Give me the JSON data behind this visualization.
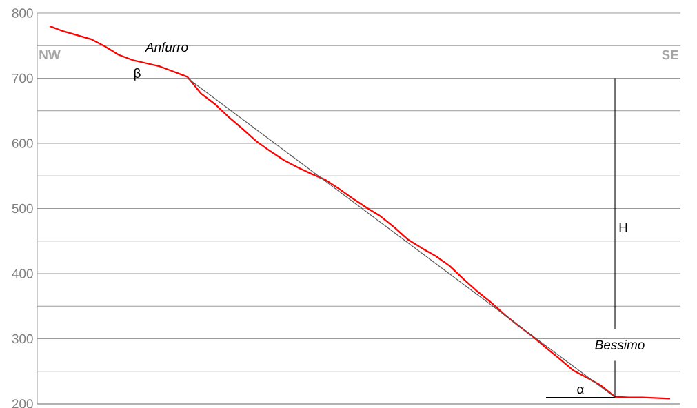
{
  "chart_data": {
    "type": "line",
    "categories": [
      null,
      null,
      null,
      null,
      null,
      null,
      null,
      null,
      null,
      null,
      null,
      null,
      null,
      null,
      null,
      null,
      null,
      null,
      null,
      null,
      null,
      null,
      null,
      null,
      null,
      null,
      null,
      null,
      null,
      null,
      null,
      null,
      null,
      null,
      null,
      null,
      null,
      null,
      null,
      null,
      null,
      null,
      null,
      null,
      null,
      null
    ],
    "series": [
      {
        "color": "#ff0000",
        "values": [
          780,
          772,
          766,
          760,
          749,
          736,
          728,
          723,
          718,
          710,
          702,
          676,
          660,
          640,
          622,
          603,
          588,
          574,
          563,
          553,
          544,
          530,
          515,
          501,
          488,
          471,
          452,
          439,
          427,
          412,
          392,
          373,
          356,
          337,
          320,
          304,
          286,
          269,
          251,
          240,
          228,
          211,
          210,
          210,
          209,
          208
        ]
      },
      {
        "color": "#595959",
        "values": [
          null,
          null,
          null,
          null,
          null,
          null,
          null,
          null,
          null,
          null,
          700,
          null,
          null,
          null,
          null,
          null,
          null,
          null,
          null,
          null,
          null,
          null,
          null,
          null,
          null,
          null,
          null,
          null,
          null,
          null,
          null,
          null,
          null,
          null,
          null,
          null,
          null,
          null,
          null,
          null,
          null,
          210,
          null,
          null,
          null,
          null
        ]
      },
      {
        "color": "#000000",
        "values": [
          null,
          null,
          null,
          null,
          null,
          null,
          null,
          null,
          null,
          null,
          null,
          null,
          null,
          null,
          null,
          null,
          null,
          null,
          null,
          null,
          null,
          null,
          null,
          null,
          null,
          null,
          null,
          null,
          null,
          null,
          null,
          null,
          null,
          null,
          null,
          null,
          210,
          210,
          210,
          210,
          210,
          210,
          null,
          null,
          null,
          null
        ]
      }
    ],
    "ylim": [
      200,
      800
    ],
    "yticks": [
      200,
      {
        "value": 250,
        "label": null
      },
      300,
      {
        "value": 350,
        "label": null
      },
      400,
      {
        "value": 450,
        "label": null
      },
      500,
      {
        "value": 550,
        "label": null
      },
      600,
      {
        "value": 650,
        "label": null
      },
      700,
      {
        "value": 750,
        "label": null
      },
      800
    ],
    "grid": "y",
    "tick_labels": "y",
    "annotations": [
      "NW",
      "SE",
      "Anfurro",
      "β",
      "Bessimo",
      "α",
      "H"
    ]
  }
}
